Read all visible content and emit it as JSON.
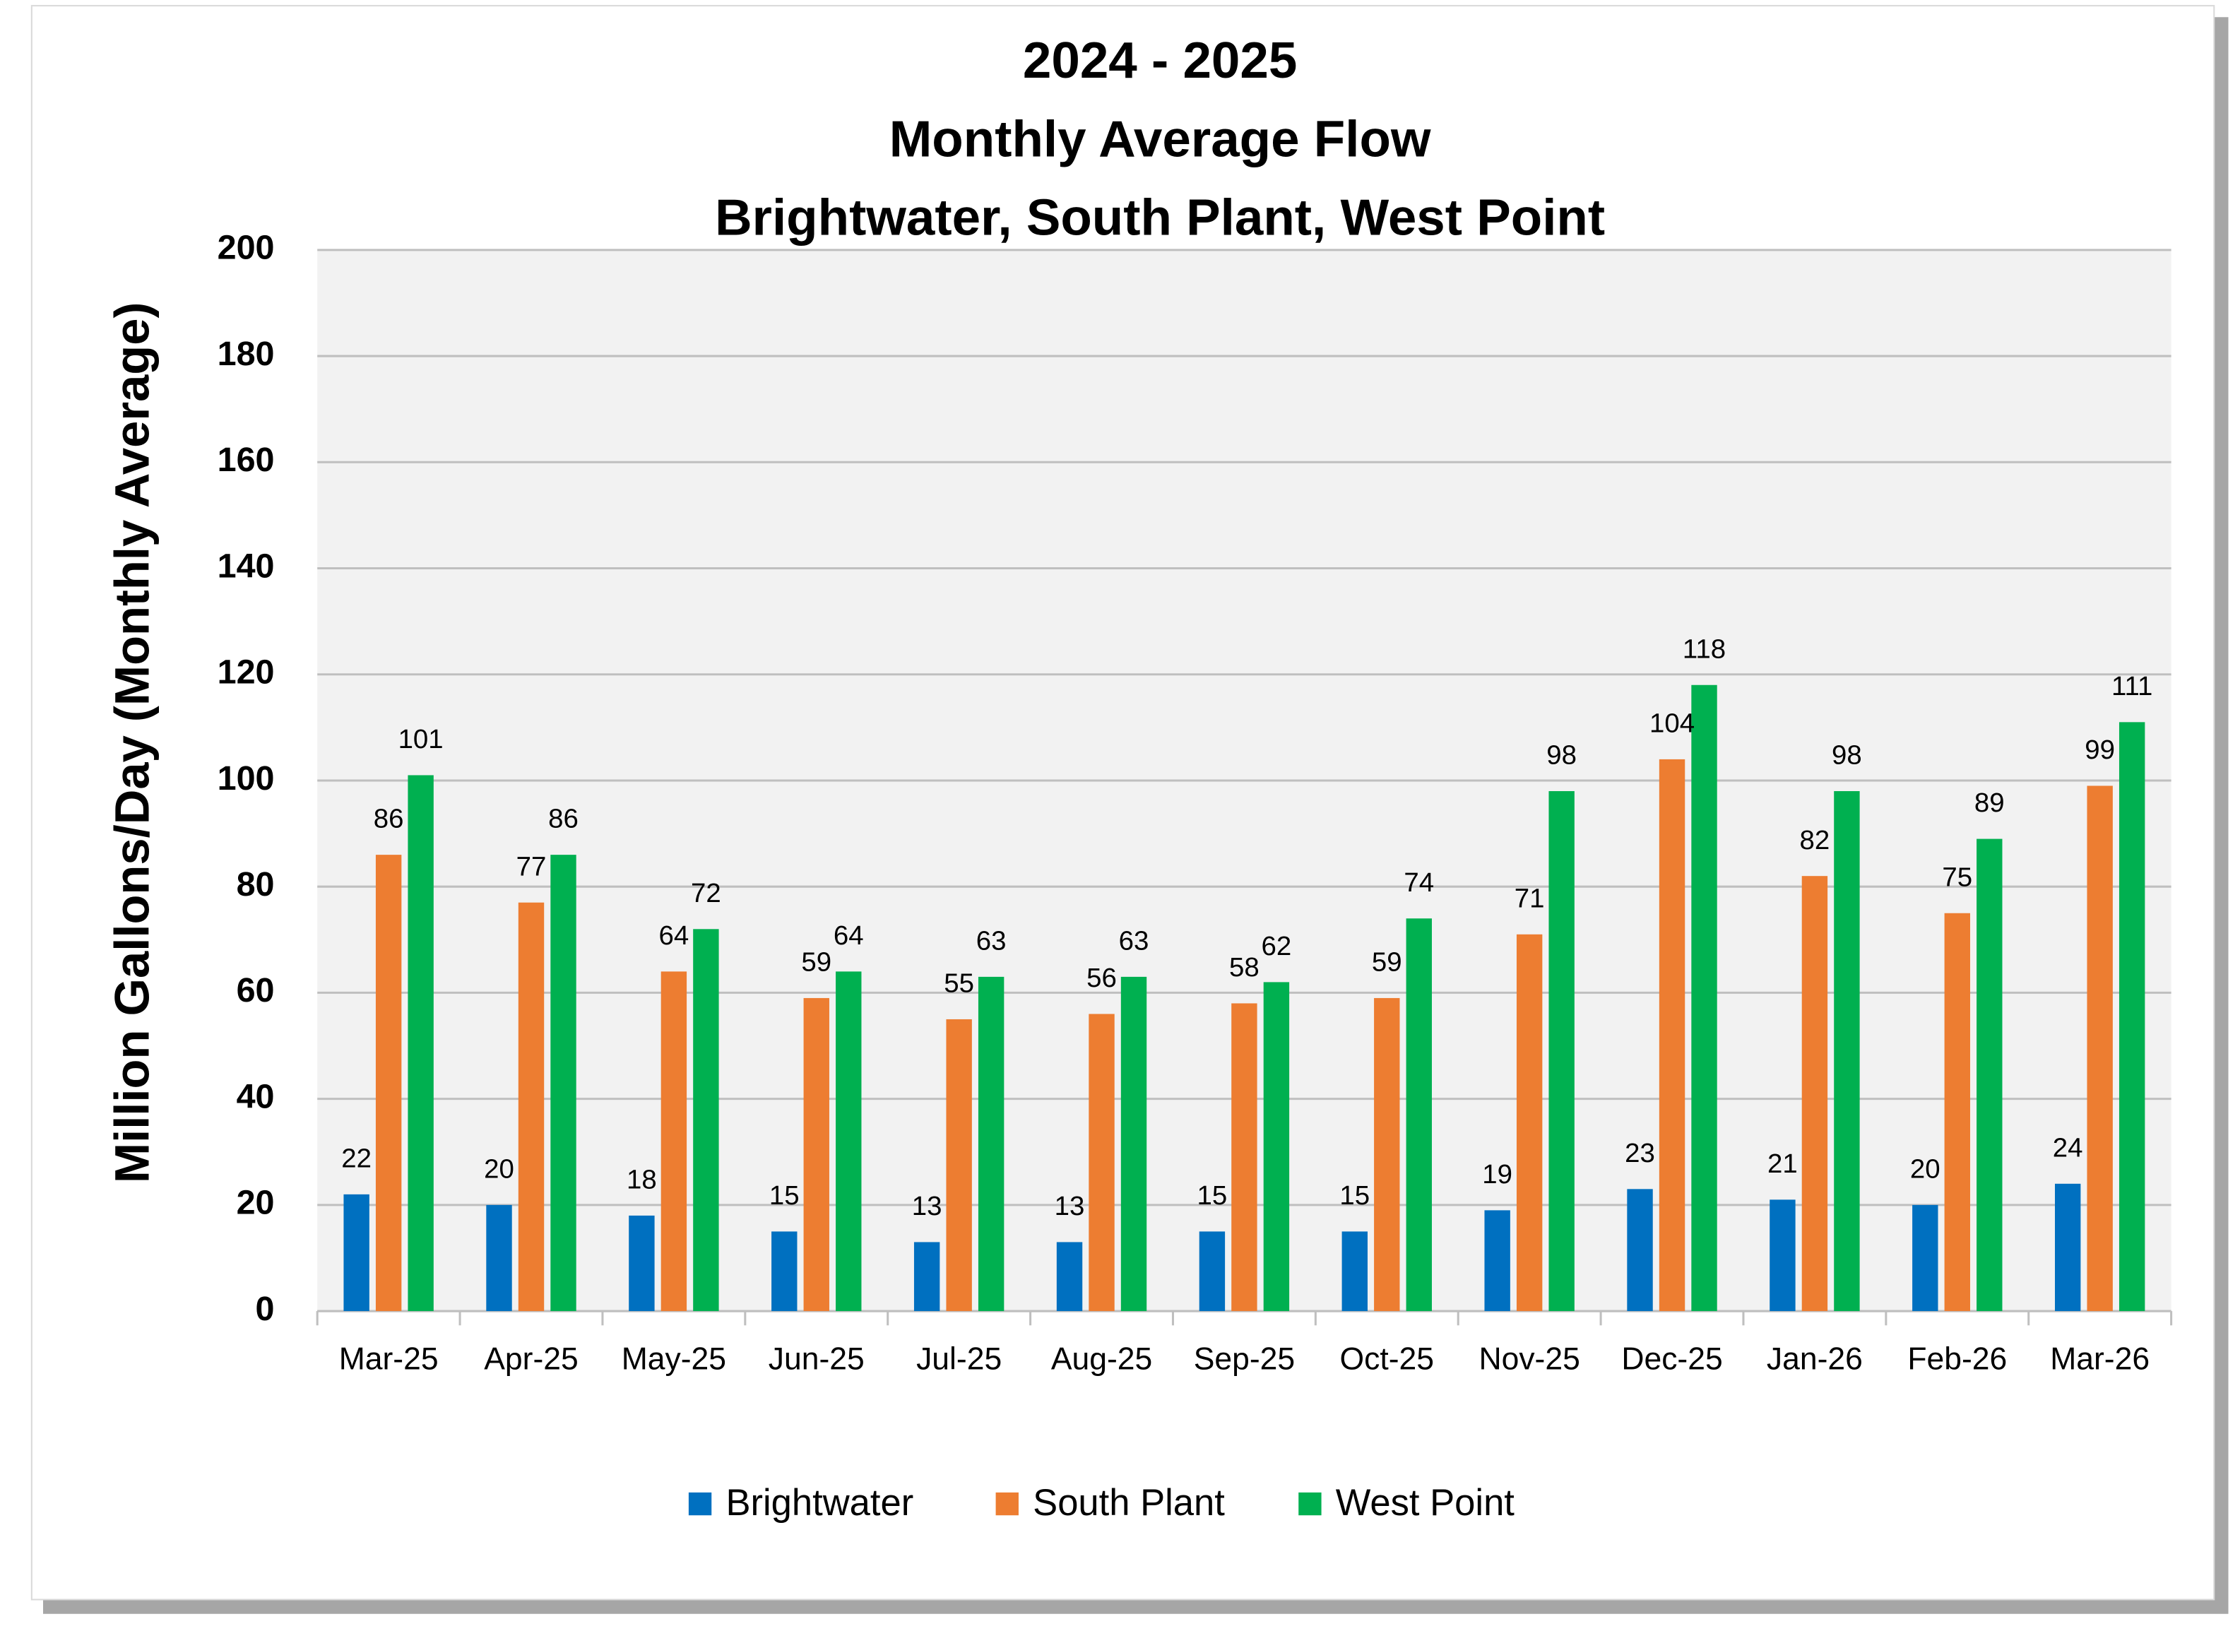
{
  "chart_data": {
    "type": "bar",
    "title": [
      "2024 - 2025",
      "Monthly Average Flow",
      "Brightwater, South Plant, West Point"
    ],
    "y_label": "Million Gallons/Day (Monthly Average)",
    "categories": [
      "Mar-25",
      "Apr-25",
      "May-25",
      "Jun-25",
      "Jul-25",
      "Aug-25",
      "Sep-25",
      "Oct-25",
      "Nov-25",
      "Dec-25",
      "Jan-26",
      "Feb-26",
      "Mar-26"
    ],
    "series": [
      {
        "name": "Brightwater",
        "color": "#0070c0",
        "values": [
          22,
          20,
          18,
          15,
          13,
          13,
          15,
          15,
          19,
          23,
          21,
          20,
          24
        ]
      },
      {
        "name": "South Plant",
        "color": "#ed7d31",
        "values": [
          86,
          77,
          64,
          59,
          55,
          56,
          58,
          59,
          71,
          104,
          82,
          75,
          99
        ]
      },
      {
        "name": "West Point",
        "color": "#00b050",
        "values": [
          101,
          86,
          72,
          64,
          63,
          63,
          62,
          74,
          98,
          118,
          98,
          89,
          111
        ]
      }
    ],
    "ylim": [
      0,
      200
    ],
    "yticks": [
      0,
      20,
      40,
      60,
      80,
      100,
      120,
      140,
      160,
      180,
      200
    ],
    "grid": true,
    "legend": "bottom"
  }
}
